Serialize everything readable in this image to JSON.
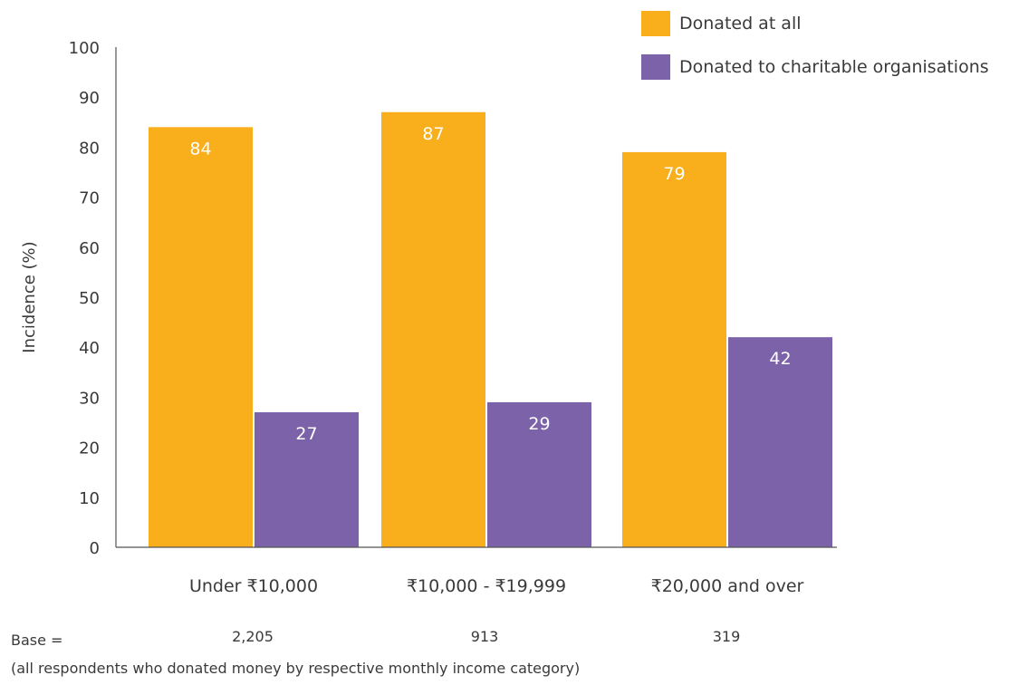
{
  "chart_data": {
    "type": "bar",
    "categories": [
      "Under ₹10,000",
      "₹10,000 - ₹19,999",
      "₹20,000 and over"
    ],
    "series": [
      {
        "name": "Donated at all",
        "values": [
          84,
          87,
          79
        ],
        "color": "#f9ae1b"
      },
      {
        "name": "Donated to charitable organisations",
        "values": [
          27,
          29,
          42
        ],
        "color": "#7b62a9"
      }
    ],
    "ylabel": "Incidence (%)",
    "ylim": [
      0,
      100
    ],
    "yticks": [
      0,
      10,
      20,
      30,
      40,
      50,
      60,
      70,
      80,
      90,
      100
    ],
    "legend_position": "top-right",
    "grid": false
  },
  "base": {
    "label": "Base =",
    "values": [
      "2,205",
      "913",
      "319"
    ]
  },
  "footnote": "(all respondents who donated money by respective monthly income category)"
}
